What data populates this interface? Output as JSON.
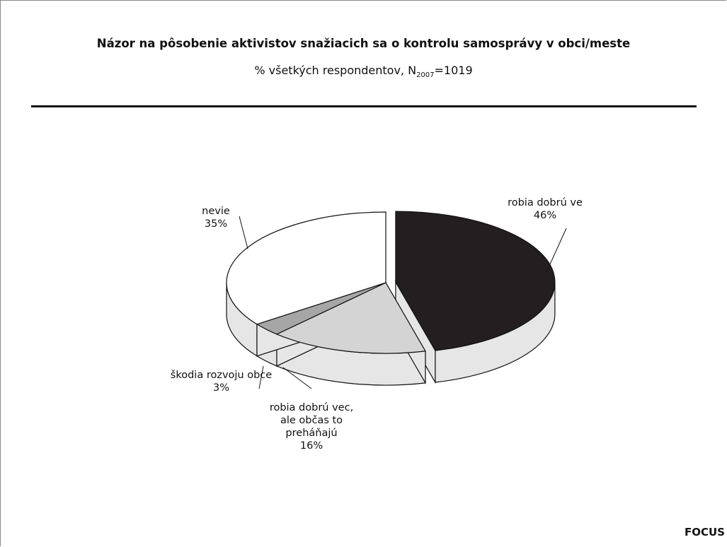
{
  "chart_data": {
    "type": "pie",
    "title": "Názor na pôsobenie aktivistov snažiacich sa o kontrolu samosprávy v obci/meste",
    "subtitle": "% všetkých respondentov, N",
    "subtitle_sub": "2007",
    "subtitle_end": "=1019",
    "categories": [
      "robia dobrú ve",
      "robia dobrú vec, ale občas to preháňajú",
      "škodia rozvoju obce",
      "nevie"
    ],
    "values": [
      46,
      16,
      3,
      35
    ],
    "value_labels": [
      "46%",
      "16%",
      "3%",
      "35%"
    ],
    "colors": [
      "#231f20",
      "#d4d4d4",
      "#a6a6a6",
      "#ffffff"
    ],
    "source": "FOCUS"
  }
}
